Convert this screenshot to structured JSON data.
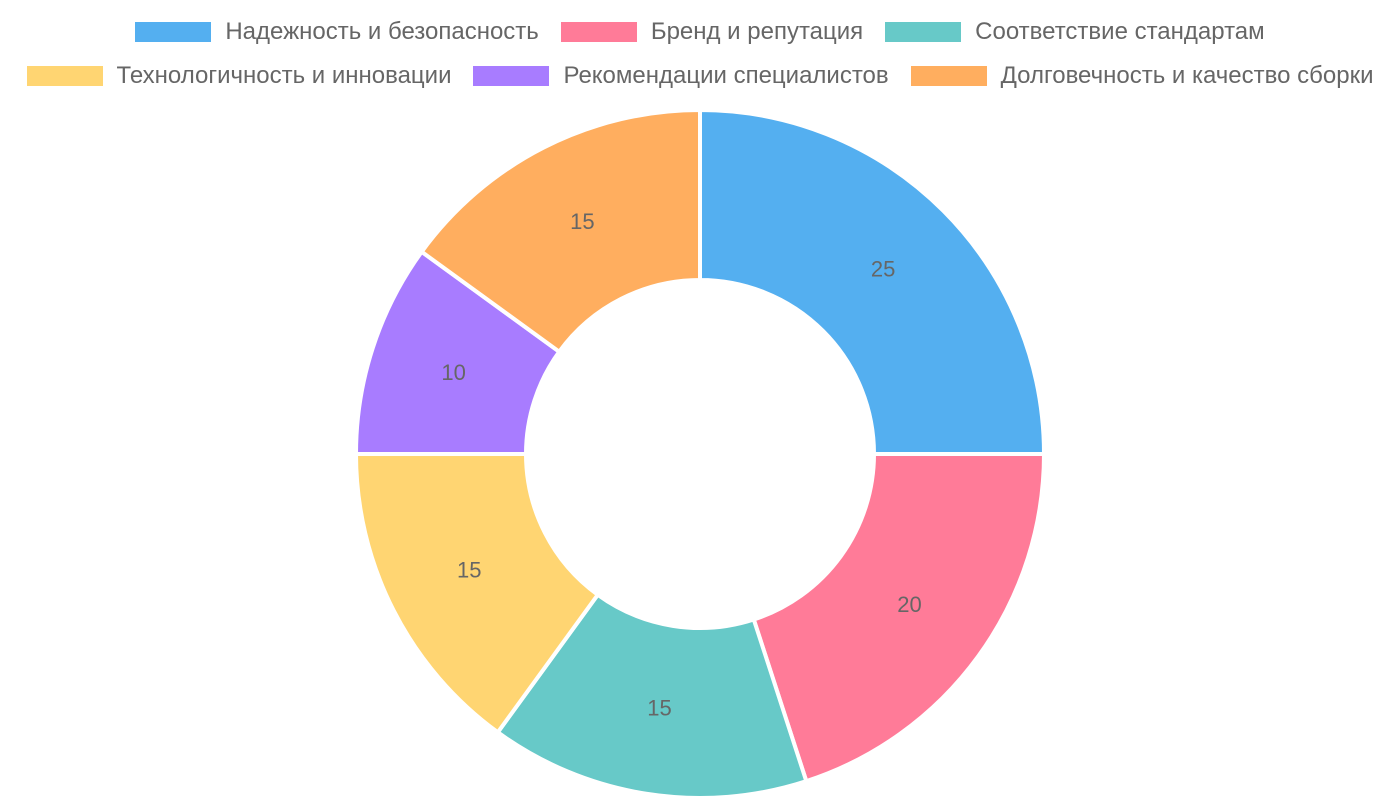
{
  "chart_data": {
    "type": "pie",
    "subtype": "doughnut",
    "categories": [
      "Надежность и безопасность",
      "Бренд и репутация",
      "Соответствие стандартам",
      "Технологичность и инновации",
      "Рекомендации специалистов",
      "Долговечность и качество сборки"
    ],
    "values": [
      25,
      20,
      15,
      15,
      10,
      15
    ],
    "colors": [
      "#54AFF0",
      "#FF7B98",
      "#67C9C8",
      "#FFD572",
      "#A87CFF",
      "#FFAE5F"
    ],
    "legend_position": "top",
    "data_labels": true
  }
}
